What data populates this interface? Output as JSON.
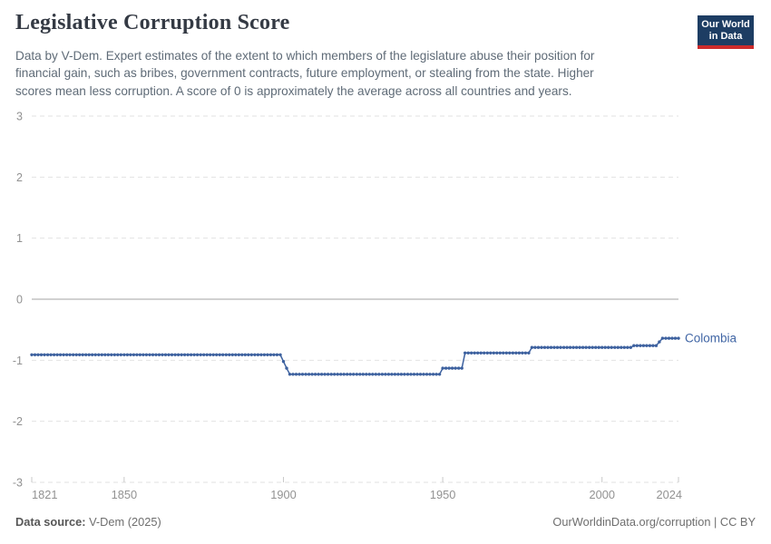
{
  "header": {
    "title": "Legislative Corruption Score",
    "subtitle_lines": [
      "Data by V-Dem. Expert estimates of the extent to which members of the legislature abuse their position for",
      "financial gain, such as bribes, government contracts, future employment, or stealing from the state. Higher",
      "scores mean less corruption. A score of 0 is approximately the average across all countries and years."
    ],
    "logo_line1": "Our World",
    "logo_line2": "in Data",
    "logo_bg_color": "#1d3d63",
    "logo_bar_color": "#cc2b2b"
  },
  "footer": {
    "source_label": "Data source:",
    "source_value": "V-Dem (2025)",
    "credit": "OurWorldinData.org/corruption | CC BY"
  },
  "chart_data": {
    "type": "line",
    "title": "Legislative Corruption Score",
    "xlabel": "",
    "ylabel": "",
    "x": {
      "min": 1821,
      "max": 2024,
      "ticks": [
        1821,
        1850,
        1900,
        1950,
        2000,
        2024
      ]
    },
    "y": {
      "min": -3,
      "max": 3,
      "ticks": [
        3,
        2,
        1,
        0,
        -1,
        -2,
        -3
      ]
    },
    "grid": "horizontal-dashed, zero-line-solid",
    "legend_position": "end-of-line-label",
    "series": [
      {
        "name": "Colombia",
        "color": "#3d619f",
        "label_color": "#4166a5",
        "marker": "circle-every-year",
        "segments": [
          {
            "from": 1821,
            "to": 1899,
            "value": -0.91
          },
          {
            "from": 1900,
            "to": 1900,
            "value": -1.02
          },
          {
            "from": 1901,
            "to": 1901,
            "value": -1.13
          },
          {
            "from": 1902,
            "to": 1949,
            "value": -1.23
          },
          {
            "from": 1950,
            "to": 1956,
            "value": -1.13
          },
          {
            "from": 1957,
            "to": 1977,
            "value": -0.88
          },
          {
            "from": 1978,
            "to": 2009,
            "value": -0.79
          },
          {
            "from": 2010,
            "to": 2017,
            "value": -0.76
          },
          {
            "from": 2018,
            "to": 2018,
            "value": -0.7
          },
          {
            "from": 2019,
            "to": 2024,
            "value": -0.64
          }
        ]
      }
    ],
    "colors": {
      "gridline": "#e2e2e2",
      "zero_line": "#a3a3a3",
      "tick_mark": "#c9c9c9",
      "axis_label": "#929292"
    }
  }
}
